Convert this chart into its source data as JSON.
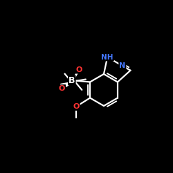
{
  "background": "#000000",
  "bond_color": "#ffffff",
  "bond_width": 1.6,
  "O_color": "#ff3333",
  "N_color": "#4477ff",
  "B_color": "#ffffff",
  "font_size_atom": 8,
  "fig_width": 2.5,
  "fig_height": 2.5,
  "dpi": 100,
  "xlim": [
    0,
    10
  ],
  "ylim": [
    0,
    10
  ]
}
